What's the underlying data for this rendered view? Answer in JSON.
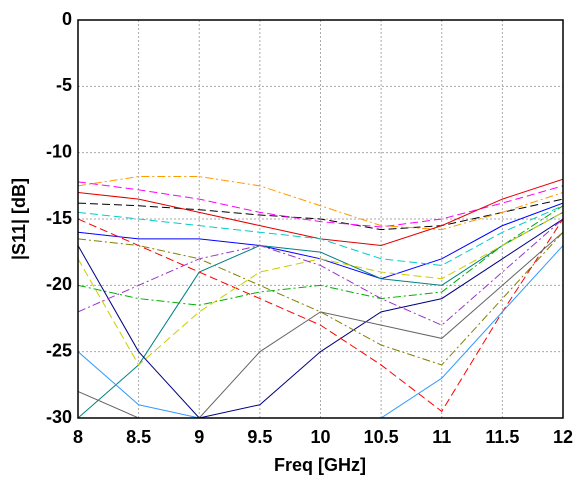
{
  "chart_data": {
    "type": "line",
    "xlabel": "Freq [GHz]",
    "ylabel": "|S11|  [dB]",
    "x": [
      8,
      8.5,
      9,
      9.5,
      10,
      10.5,
      11,
      11.5,
      12
    ],
    "xlim": [
      8,
      12
    ],
    "xticks": [
      8,
      8.5,
      9,
      9.5,
      10,
      10.5,
      11,
      11.5,
      12
    ],
    "ylim": [
      -30,
      0
    ],
    "yticks": [
      0,
      -5,
      -10,
      -15,
      -20,
      -25,
      -30
    ],
    "grid": true,
    "series": [
      {
        "color": "#000000",
        "style": "dashed",
        "values": [
          -13.8,
          -14,
          -14.3,
          -14.7,
          -15,
          -15.8,
          -15.5,
          -14.5,
          -13.5
        ]
      },
      {
        "color": "#ff00ff",
        "style": "dashed",
        "values": [
          -12.2,
          -12.8,
          -13.5,
          -14.5,
          -15.2,
          -15.6,
          -15,
          -13.8,
          -12.5
        ]
      },
      {
        "color": "#ff9900",
        "style": "dashdot",
        "values": [
          -12.5,
          -11.8,
          -11.8,
          -12.5,
          -14,
          -15.5,
          -15.8,
          -14.5,
          -13
        ]
      },
      {
        "color": "#e00000",
        "style": "solid",
        "values": [
          -13,
          -13.5,
          -14.5,
          -15.5,
          -16.5,
          -17,
          -15.5,
          -13.5,
          -12
        ]
      },
      {
        "color": "#0000ff",
        "style": "solid",
        "values": [
          -16,
          -16.5,
          -16.5,
          -17,
          -18,
          -19.5,
          -18,
          -15.5,
          -13.8
        ]
      },
      {
        "color": "#008080",
        "style": "solid",
        "values": [
          -30,
          -26,
          -19,
          -17,
          -17.5,
          -19.5,
          -20,
          -17,
          -14.5
        ]
      },
      {
        "color": "#00b000",
        "style": "dashdot",
        "values": [
          -20,
          -21,
          -21.5,
          -20.5,
          -20,
          -21,
          -20.5,
          -17,
          -14
        ]
      },
      {
        "color": "#000080",
        "style": "solid",
        "values": [
          -17,
          -25,
          -30,
          -29,
          -25,
          -22,
          -21,
          -18,
          -15
        ]
      },
      {
        "color": "#ff0000",
        "style": "dashed",
        "values": [
          -15,
          -17,
          -19,
          -21,
          -23,
          -26,
          -29.5,
          -22,
          -15
        ]
      },
      {
        "color": "#cccc00",
        "style": "dashed",
        "values": [
          -18,
          -26,
          -22,
          -19,
          -18,
          -19,
          -19.5,
          -17,
          -14.5
        ]
      },
      {
        "color": "#00cccc",
        "style": "dashed",
        "values": [
          -14.5,
          -15,
          -15.5,
          -16,
          -16.5,
          -18,
          -18.5,
          -16,
          -14
        ]
      },
      {
        "color": "#9933cc",
        "style": "dashdot",
        "values": [
          -22,
          -20,
          -18,
          -17,
          -18.5,
          -21,
          -23,
          -19,
          -15
        ]
      },
      {
        "color": "#666666",
        "style": "solid",
        "values": [
          -28,
          -30,
          -30,
          -25,
          -22,
          -23,
          -24,
          -20,
          -16
        ]
      },
      {
        "color": "#808000",
        "style": "dashdot",
        "values": [
          -16.5,
          -17,
          -18,
          -20,
          -22,
          -24.5,
          -26,
          -21,
          -16
        ]
      },
      {
        "color": "#3399ff",
        "style": "solid",
        "values": [
          -25,
          -29,
          -30,
          -30,
          -30,
          -30,
          -27,
          -22,
          -17
        ]
      }
    ]
  }
}
